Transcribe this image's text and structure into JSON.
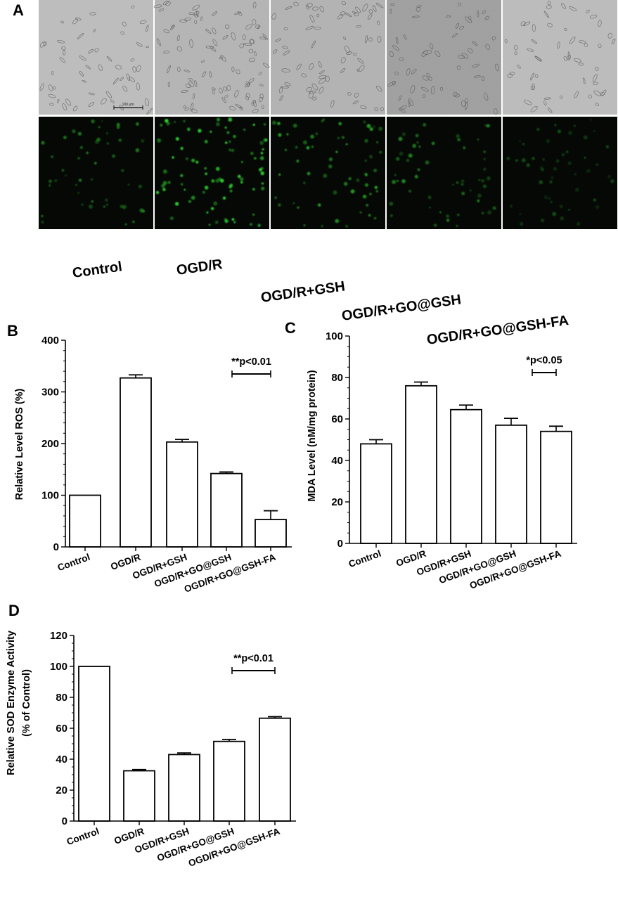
{
  "panel_a": {
    "letter": "A",
    "scale_bar_label": "100 μm",
    "groups": [
      "Control",
      "OGD/R",
      "OGD/R+GSH",
      "OGD/R+GO@GSH",
      "OGD/R+GO@GSH-FA"
    ],
    "colors": {
      "brightfield": "#b9b9b9",
      "fluorescence_bg": "#050805",
      "cell_green": "#2fd12f"
    }
  },
  "chart_data": [
    {
      "panel": "B",
      "type": "bar",
      "categories": [
        "Control",
        "OGD/R",
        "OGD/R+GSH",
        "OGD/R+GO@GSH",
        "OGD/R+GO@GSH-FA"
      ],
      "values": [
        100,
        327,
        203,
        142,
        53
      ],
      "errors": [
        0,
        6,
        5,
        3,
        17
      ],
      "title": "",
      "xlabel": "",
      "ylabel": "Relative Level ROS (%)",
      "ylim": [
        0,
        400
      ],
      "yticks": [
        0,
        100,
        200,
        300,
        400
      ],
      "y_minor_step": 20,
      "annotation": {
        "text": "**p<0.01",
        "from_category": 3,
        "to_category": 4
      },
      "grid": false,
      "legend": "none"
    },
    {
      "panel": "C",
      "type": "bar",
      "categories": [
        "Control",
        "OGD/R",
        "OGD/R+GSH",
        "OGD/R+GO@GSH",
        "OGD/R+GO@GSH-FA"
      ],
      "values": [
        48,
        76,
        64.5,
        57,
        54
      ],
      "errors": [
        2,
        1.8,
        2.2,
        3.3,
        2.5
      ],
      "title": "",
      "xlabel": "",
      "ylabel": "MDA Level (nM/mg protein)",
      "ylim": [
        0,
        100
      ],
      "yticks": [
        0,
        20,
        40,
        60,
        80,
        100
      ],
      "y_minor_step": 5,
      "annotation": {
        "text": "*p<0.05",
        "from_category": 3,
        "to_category": 4
      },
      "grid": false,
      "legend": "none"
    },
    {
      "panel": "D",
      "type": "bar",
      "categories": [
        "Control",
        "OGD/R",
        "OGD/R+GSH",
        "OGD/R+GO@GSH",
        "OGD/R+GO@GSH-FA"
      ],
      "values": [
        100,
        32.5,
        43,
        51.5,
        66.5
      ],
      "errors": [
        0,
        0.8,
        1,
        1.3,
        1
      ],
      "title": "",
      "xlabel": "",
      "ylabel": "Relative SOD Enzyme Activity (% of Control)",
      "ylabel_lines": [
        "Relative SOD Enzyme Activity",
        "(% of Control)"
      ],
      "ylim": [
        0,
        120
      ],
      "yticks": [
        0,
        20,
        40,
        60,
        80,
        100,
        120
      ],
      "y_minor_step": 5,
      "annotation": {
        "text": "**p<0.01",
        "from_category": 3,
        "to_category": 4
      },
      "grid": false,
      "legend": "none"
    }
  ]
}
